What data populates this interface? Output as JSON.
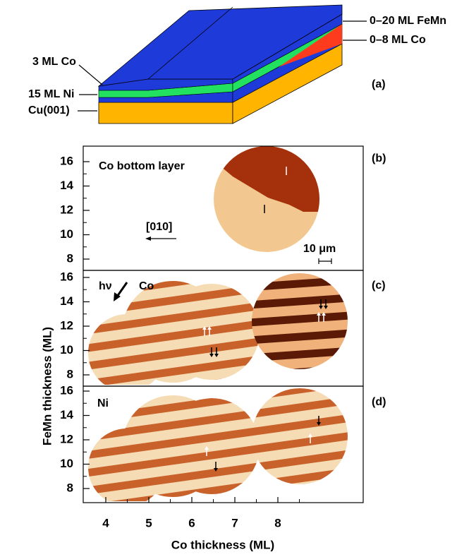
{
  "figure": {
    "panel_a": {
      "label": "(a)",
      "layers": [
        "0–20 ML FeMn",
        "0–8 ML Co",
        "3 ML Co",
        "15 ML Ni",
        "Cu(001)"
      ]
    },
    "panel_b": {
      "label": "(b)",
      "title": "Co bottom layer",
      "direction": "[010]",
      "scale_bar": "10 μm"
    },
    "panel_c": {
      "label": "(c)",
      "beam": "hν",
      "element": "Co"
    },
    "panel_d": {
      "label": "(d)",
      "element": "Ni"
    },
    "x_axis": {
      "label": "Co thickness (ML)",
      "ticks": [
        4,
        5,
        6,
        7,
        8
      ]
    },
    "y_axis": {
      "label": "FeMn thickness (ML)",
      "ticks": [
        8,
        10,
        12,
        14,
        16
      ]
    }
  }
}
